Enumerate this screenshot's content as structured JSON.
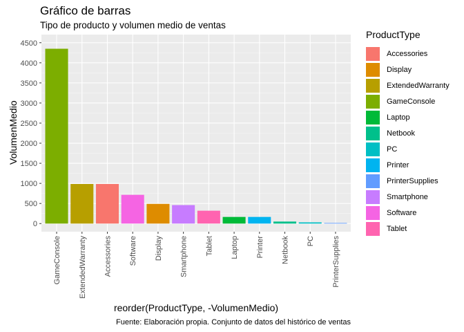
{
  "title": "Gráfico de barras",
  "subtitle": "Tipo de producto y volumen medio de ventas",
  "caption": "Fuente: Elaboración propia. Conjunto de datos del histórico de ventas",
  "chart_data": {
    "type": "bar",
    "xlabel": "reorder(ProductType, -VolumenMedio)",
    "ylabel": "VolumenMedio",
    "ylim": [
      0,
      4500
    ],
    "yticks": [
      0,
      500,
      1000,
      1500,
      2000,
      2500,
      3000,
      3500,
      4000,
      4500
    ],
    "grid": true,
    "legend_position": "right",
    "legend_title": "ProductType",
    "categories": [
      "GameConsole",
      "ExtendedWarranty",
      "Accessories",
      "Software",
      "Display",
      "Smartphone",
      "Tablet",
      "Laptop",
      "Printer",
      "Netbook",
      "PC",
      "PrinterSupplies"
    ],
    "values": [
      4350,
      985,
      985,
      715,
      490,
      460,
      320,
      165,
      165,
      50,
      30,
      15
    ],
    "legend": [
      {
        "label": "Accessories",
        "color": "#F8766D"
      },
      {
        "label": "Display",
        "color": "#DE8C00"
      },
      {
        "label": "ExtendedWarranty",
        "color": "#B79F00"
      },
      {
        "label": "GameConsole",
        "color": "#7CAE00"
      },
      {
        "label": "Laptop",
        "color": "#00BA38"
      },
      {
        "label": "Netbook",
        "color": "#00C08B"
      },
      {
        "label": "PC",
        "color": "#00BFC4"
      },
      {
        "label": "Printer",
        "color": "#00B4F0"
      },
      {
        "label": "PrinterSupplies",
        "color": "#619CFF"
      },
      {
        "label": "Smartphone",
        "color": "#C77CFF"
      },
      {
        "label": "Software",
        "color": "#F564E3"
      },
      {
        "label": "Tablet",
        "color": "#FF64B0"
      }
    ]
  }
}
